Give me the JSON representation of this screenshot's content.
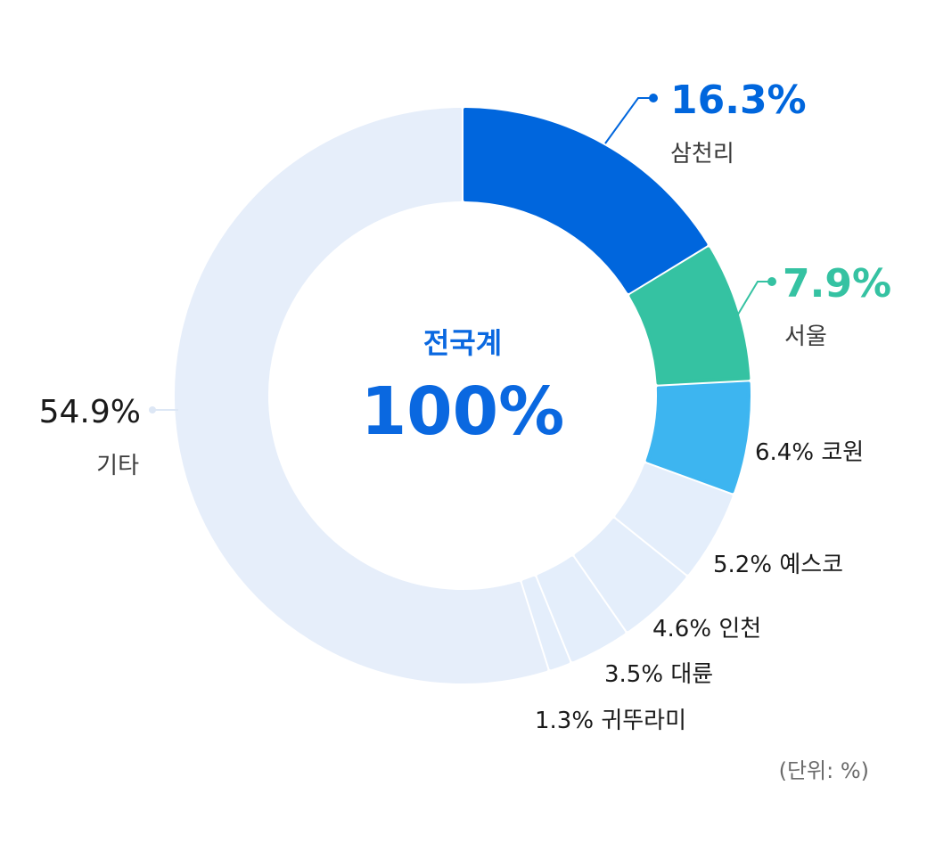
{
  "chart_data": {
    "type": "pie",
    "donut": true,
    "center": {
      "title": "전국계",
      "value": "100%"
    },
    "unit_note": "(단위: %)",
    "series": [
      {
        "name": "삼천리",
        "value": 16.3,
        "label": "16.3%",
        "color": "#0066dd",
        "highlight": true
      },
      {
        "name": "서울",
        "value": 7.9,
        "label": "7.9%",
        "color": "#35c2a2",
        "highlight": true
      },
      {
        "name": "코원",
        "value": 6.4,
        "label": "6.4% 코원",
        "color": "#3db5f0"
      },
      {
        "name": "예스코",
        "value": 5.2,
        "label": "5.2% 예스코",
        "color": "#e4eefb"
      },
      {
        "name": "인천",
        "value": 4.6,
        "label": "4.6% 인천",
        "color": "#e4eefb"
      },
      {
        "name": "대륜",
        "value": 3.5,
        "label": "3.5% 대륜",
        "color": "#e4eefb"
      },
      {
        "name": "귀뚜라미",
        "value": 1.3,
        "label": "1.3% 귀뚜라미",
        "color": "#e4eefb"
      },
      {
        "name": "기타",
        "value": 54.9,
        "label": "54.9%",
        "color": "#e6eefa"
      }
    ],
    "other_label_color": "#1a1a1a"
  }
}
